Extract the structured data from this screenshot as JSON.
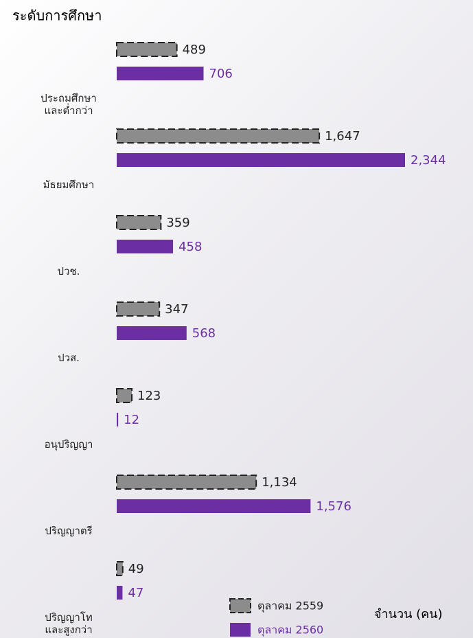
{
  "chart_data": {
    "type": "bar",
    "orientation": "horizontal",
    "title": "ระดับการศึกษา",
    "value_axis_label": "จำนวน (คน)",
    "categories": [
      "ประถมศึกษา\nและต่ำกว่า",
      "มัธยมศึกษา",
      "ปวช.",
      "ปวส.",
      "อนุปริญญา",
      "ปริญญาตรี",
      "ปริญญาโท\nและสูงกว่า"
    ],
    "series": [
      {
        "name": "ตุลาคม 2559",
        "color": "#8c8c8c",
        "dashed": true,
        "values": [
          489,
          1647,
          359,
          347,
          123,
          1134,
          49
        ],
        "value_labels": [
          "489",
          "1,647",
          "359",
          "347",
          "123",
          "1,134",
          "49"
        ]
      },
      {
        "name": "ตุลาคม 2560",
        "color": "#6b2fa3",
        "dashed": false,
        "values": [
          706,
          2344,
          458,
          568,
          12,
          1576,
          47
        ],
        "value_labels": [
          "706",
          "2,344",
          "458",
          "568",
          "12",
          "1,576",
          "47"
        ]
      }
    ]
  }
}
